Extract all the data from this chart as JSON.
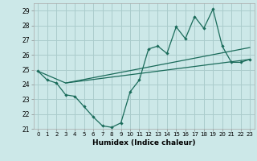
{
  "xlabel": "Humidex (Indice chaleur)",
  "bg_color": "#cce8e8",
  "grid_color": "#aacccc",
  "line_color": "#1a6b5a",
  "xlim": [
    -0.5,
    23.5
  ],
  "ylim": [
    21,
    29.5
  ],
  "xticks": [
    0,
    1,
    2,
    3,
    4,
    5,
    6,
    7,
    8,
    9,
    10,
    11,
    12,
    13,
    14,
    15,
    16,
    17,
    18,
    19,
    20,
    21,
    22,
    23
  ],
  "yticks": [
    21,
    22,
    23,
    24,
    25,
    26,
    27,
    28,
    29
  ],
  "series1_x": [
    0,
    1,
    2,
    3,
    4,
    5,
    6,
    7,
    8,
    9,
    10,
    11,
    12,
    13,
    14,
    15,
    16,
    17,
    18,
    19,
    20,
    21,
    22,
    23
  ],
  "series1_y": [
    24.9,
    24.3,
    24.1,
    23.3,
    23.2,
    22.5,
    21.8,
    21.2,
    21.1,
    21.4,
    23.5,
    24.3,
    26.4,
    26.6,
    26.1,
    27.9,
    27.1,
    28.6,
    27.8,
    29.1,
    26.6,
    25.5,
    25.5,
    25.7
  ],
  "series2_x": [
    0,
    3,
    23
  ],
  "series2_y": [
    24.9,
    24.1,
    25.7
  ],
  "series3_x": [
    3,
    23
  ],
  "series3_y": [
    24.1,
    26.5
  ]
}
